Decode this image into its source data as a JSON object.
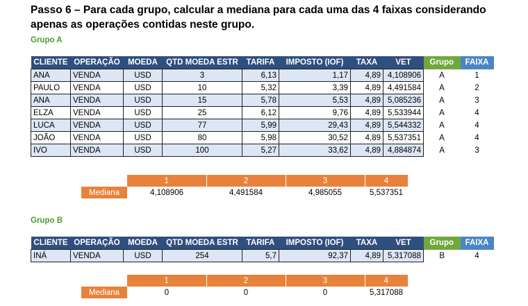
{
  "title": "Passo 6 – Para cada grupo, calcular a mediana para cada uma das 4 faixas considerando apenas as operações contidas neste grupo.",
  "headers": [
    "CLIENTE",
    "OPERAÇÃO",
    "MOEDA",
    "QTD MOEDA ESTR",
    "TARIFA",
    "IMPOSTO (IOF)",
    "TAXA",
    "VET",
    "Grupo",
    "FAIXA"
  ],
  "group_a": {
    "label": "Grupo A",
    "rows": [
      [
        "ANA",
        "VENDA",
        "USD",
        "3",
        "6,13",
        "1,17",
        "4,89",
        "4,108906",
        "A",
        "1"
      ],
      [
        "PAULO",
        "VENDA",
        "USD",
        "10",
        "5,32",
        "3,39",
        "4,89",
        "4,491584",
        "A",
        "2"
      ],
      [
        "ANA",
        "VENDA",
        "USD",
        "15",
        "5,78",
        "5,53",
        "4,89",
        "5,085236",
        "A",
        "3"
      ],
      [
        "ELZA",
        "VENDA",
        "USD",
        "25",
        "6,12",
        "9,76",
        "4,89",
        "5,533944",
        "A",
        "4"
      ],
      [
        "LUCA",
        "VENDA",
        "USD",
        "77",
        "5,99",
        "29,43",
        "4,89",
        "5,544332",
        "A",
        "4"
      ],
      [
        "JOÃO",
        "VENDA",
        "USD",
        "80",
        "5,98",
        "30,52",
        "4,89",
        "5,537351",
        "A",
        "4"
      ],
      [
        "IVO",
        "VENDA",
        "USD",
        "100",
        "5,27",
        "33,62",
        "4,89",
        "4,884874",
        "A",
        "3"
      ]
    ],
    "median": {
      "label": "Mediana",
      "faixas": [
        "1",
        "2",
        "3",
        "4"
      ],
      "values": [
        "4,108906",
        "4,491584",
        "4,985055",
        "5,537351"
      ]
    }
  },
  "group_b": {
    "label": "Grupo B",
    "rows": [
      [
        "INÁ",
        "VENDA",
        "USD",
        "254",
        "5,7",
        "92,37",
        "4,89",
        "5,317088",
        "B",
        "4"
      ]
    ],
    "median": {
      "label": "Mediana",
      "faixas": [
        "1",
        "2",
        "3",
        "4"
      ],
      "values": [
        "0",
        "0",
        "0",
        "5,317088"
      ]
    }
  },
  "colors": {
    "header_bg": "#2f4f7f",
    "grupo_header_bg": "#70a83c",
    "faixa_header_bg": "#4a86c5",
    "row_alt_bg": "#dce6f4",
    "median_header_bg": "#e8823a",
    "group_label": "#4a9a2e"
  }
}
